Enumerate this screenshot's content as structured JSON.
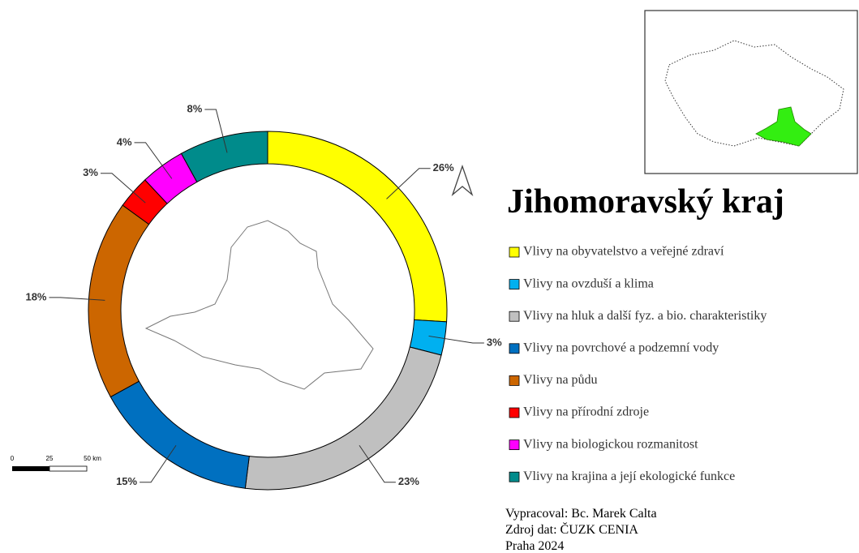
{
  "chart_data": {
    "type": "donut",
    "categories": [
      "Vlivy na obyvatelstvo a veřejné zdraví",
      "Vlivy na ovzduší a klima",
      "Vlivy na hluk a další fyz. a bio. charakteristiky",
      "Vlivy na povrchové a podzemní vody",
      "Vlivy na půdu",
      "Vlivy na přírodní zdroje",
      "Vlivy na biologickou rozmanitost",
      "Vlivy na krajina a její ekologické funkce"
    ],
    "values": [
      26,
      3,
      23,
      15,
      18,
      3,
      4,
      8
    ],
    "value_labels": [
      "26%",
      "3%",
      "23%",
      "15%",
      "18%",
      "3%",
      "4%",
      "8%"
    ],
    "colors": [
      "#ffff00",
      "#00b0f0",
      "#c0c0c0",
      "#0070c0",
      "#cc6600",
      "#ff0000",
      "#ff00ff",
      "#008b8b"
    ]
  },
  "title": "Jihomoravský kraj",
  "credits": [
    "Vypracoval: Bc. Marek Calta",
    "Zdroj dat: ČUZK CENIA",
    "Praha 2024"
  ],
  "scale_bar": {
    "labels": [
      "0",
      "25",
      "50 km"
    ]
  }
}
